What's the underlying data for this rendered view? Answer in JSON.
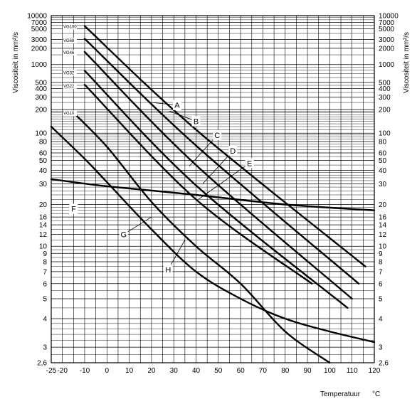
{
  "chart_data": {
    "type": "line",
    "title": "",
    "ylabel_left": "Viscositeit in mm²/s",
    "ylabel_right": "Viscositeit in mm²/s",
    "xlabel": "Temperatuur",
    "xlabel_unit": "°C",
    "xlim": [
      -25,
      120
    ],
    "ylim": [
      2.6,
      10000
    ],
    "y_scale": "double-log (Ubbelohde viscosity-temperature chart)",
    "grid": true,
    "x_ticks": [
      "-25",
      "-20",
      "-10",
      "0",
      "10",
      "20",
      "30",
      "40",
      "50",
      "60",
      "70",
      "80",
      "90",
      "100",
      "110",
      "120"
    ],
    "x_tick_values": [
      -25,
      -20,
      -10,
      0,
      10,
      20,
      30,
      40,
      50,
      60,
      70,
      80,
      90,
      100,
      110,
      120
    ],
    "y_ticks": [
      "10000",
      "7000",
      "5000",
      "3000",
      "2000",
      "1000",
      "500",
      "400",
      "300",
      "200",
      "100",
      "80",
      "60",
      "50",
      "40",
      "30",
      "20",
      "16",
      "14",
      "12",
      "10",
      "9",
      "8",
      "7",
      "6",
      "5",
      "4",
      "3",
      "2,6"
    ],
    "y_tick_values": [
      10000,
      7000,
      5000,
      3000,
      2000,
      1000,
      500,
      400,
      300,
      200,
      100,
      80,
      60,
      50,
      40,
      30,
      20,
      16,
      14,
      12,
      10,
      9,
      8,
      7,
      6,
      5,
      4,
      3,
      2.6
    ],
    "grade_labels": [
      {
        "text": "VG100",
        "value": 5600
      },
      {
        "text": "VG68",
        "value": 2850
      },
      {
        "text": "VG46",
        "value": 1650
      },
      {
        "text": "VG32",
        "value": 720
      },
      {
        "text": "VG22",
        "value": 440
      },
      {
        "text": "VG10",
        "value": 178
      }
    ],
    "series": [
      {
        "name": "A",
        "points": [
          [
            -10,
            5800
          ],
          [
            40,
            110
          ],
          [
            116,
            7.5
          ]
        ]
      },
      {
        "name": "B",
        "points": [
          [
            -10,
            3100
          ],
          [
            40,
            72
          ],
          [
            113,
            6.0
          ]
        ]
      },
      {
        "name": "C",
        "points": [
          [
            -10,
            1700
          ],
          [
            40,
            45
          ],
          [
            110,
            5.0
          ]
        ]
      },
      {
        "name": "D",
        "points": [
          [
            -10,
            780
          ],
          [
            40,
            29
          ],
          [
            108,
            4.5
          ]
        ]
      },
      {
        "name": "E",
        "points": [
          [
            -10,
            460
          ],
          [
            40,
            22
          ],
          [
            92,
            6.0
          ]
        ]
      },
      {
        "name": "F",
        "points": [
          [
            -25,
            33
          ],
          [
            0,
            28.5
          ],
          [
            40,
            24
          ],
          [
            80,
            20
          ],
          [
            120,
            18
          ]
        ]
      },
      {
        "name": "G",
        "points": [
          [
            -25,
            120
          ],
          [
            -10,
            52
          ],
          [
            0,
            31
          ],
          [
            20,
            13
          ],
          [
            40,
            7.0
          ],
          [
            60,
            5.0
          ],
          [
            80,
            4.0
          ],
          [
            100,
            3.5
          ],
          [
            120,
            3.15
          ]
        ]
      },
      {
        "name": "H",
        "points": [
          [
            -15,
            180
          ],
          [
            0,
            70
          ],
          [
            20,
            21
          ],
          [
            40,
            10
          ],
          [
            60,
            6.0
          ],
          [
            80,
            3.5
          ],
          [
            100,
            2.6
          ]
        ]
      }
    ],
    "annotations": [
      {
        "text": "A",
        "label_at": [
          31.5,
          230
        ],
        "points_to": [
          20,
          250
        ]
      },
      {
        "text": "B",
        "label_at": [
          40,
          140
        ],
        "points_to": [
          28,
          190
        ]
      },
      {
        "text": "C",
        "label_at": [
          49.5,
          95
        ],
        "points_to": [
          37,
          44
        ]
      },
      {
        "text": "D",
        "label_at": [
          56.5,
          63
        ],
        "points_to": [
          43,
          30
        ]
      },
      {
        "text": "E",
        "label_at": [
          64,
          47
        ],
        "points_to": [
          41,
          22
        ]
      },
      {
        "text": "F",
        "label_at": [
          -15,
          18.5
        ],
        "points_to": [
          -15,
          31
        ]
      },
      {
        "text": "G",
        "label_at": [
          7.5,
          12
        ],
        "points_to": [
          20,
          16
        ]
      },
      {
        "text": "H",
        "label_at": [
          27.5,
          7.2
        ],
        "points_to": [
          35,
          11
        ]
      }
    ]
  }
}
